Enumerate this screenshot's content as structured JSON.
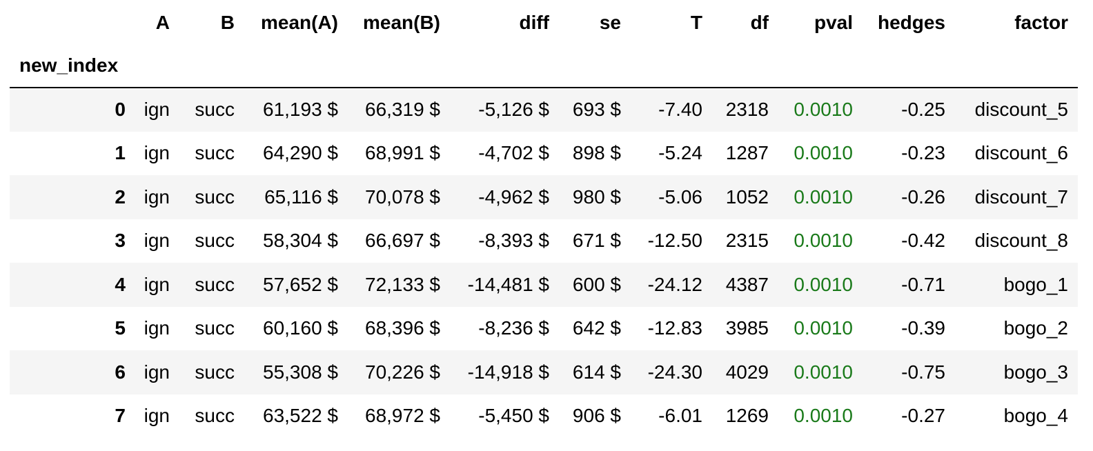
{
  "table": {
    "index_name": "new_index",
    "columns": [
      "A",
      "B",
      "mean(A)",
      "mean(B)",
      "diff",
      "se",
      "T",
      "df",
      "pval",
      "hedges",
      "factor"
    ],
    "rows": [
      {
        "index": "0",
        "A": "ign",
        "B": "succ",
        "meanA": "61,193 $",
        "meanB": "66,319 $",
        "diff": "-5,126 $",
        "se": "693 $",
        "T": "-7.40",
        "df": "2318",
        "pval": "0.0010",
        "hedges": "-0.25",
        "factor": "discount_5"
      },
      {
        "index": "1",
        "A": "ign",
        "B": "succ",
        "meanA": "64,290 $",
        "meanB": "68,991 $",
        "diff": "-4,702 $",
        "se": "898 $",
        "T": "-5.24",
        "df": "1287",
        "pval": "0.0010",
        "hedges": "-0.23",
        "factor": "discount_6"
      },
      {
        "index": "2",
        "A": "ign",
        "B": "succ",
        "meanA": "65,116 $",
        "meanB": "70,078 $",
        "diff": "-4,962 $",
        "se": "980 $",
        "T": "-5.06",
        "df": "1052",
        "pval": "0.0010",
        "hedges": "-0.26",
        "factor": "discount_7"
      },
      {
        "index": "3",
        "A": "ign",
        "B": "succ",
        "meanA": "58,304 $",
        "meanB": "66,697 $",
        "diff": "-8,393 $",
        "se": "671 $",
        "T": "-12.50",
        "df": "2315",
        "pval": "0.0010",
        "hedges": "-0.42",
        "factor": "discount_8"
      },
      {
        "index": "4",
        "A": "ign",
        "B": "succ",
        "meanA": "57,652 $",
        "meanB": "72,133 $",
        "diff": "-14,481 $",
        "se": "600 $",
        "T": "-24.12",
        "df": "4387",
        "pval": "0.0010",
        "hedges": "-0.71",
        "factor": "bogo_1"
      },
      {
        "index": "5",
        "A": "ign",
        "B": "succ",
        "meanA": "60,160 $",
        "meanB": "68,396 $",
        "diff": "-8,236 $",
        "se": "642 $",
        "T": "-12.83",
        "df": "3985",
        "pval": "0.0010",
        "hedges": "-0.39",
        "factor": "bogo_2"
      },
      {
        "index": "6",
        "A": "ign",
        "B": "succ",
        "meanA": "55,308 $",
        "meanB": "70,226 $",
        "diff": "-14,918 $",
        "se": "614 $",
        "T": "-24.30",
        "df": "4029",
        "pval": "0.0010",
        "hedges": "-0.75",
        "factor": "bogo_3"
      },
      {
        "index": "7",
        "A": "ign",
        "B": "succ",
        "meanA": "63,522 $",
        "meanB": "68,972 $",
        "diff": "-5,450 $",
        "se": "906 $",
        "T": "-6.01",
        "df": "1269",
        "pval": "0.0010",
        "hedges": "-0.27",
        "factor": "bogo_4"
      }
    ]
  },
  "colors": {
    "pval_text": "#1a7a1a",
    "stripe_background": "#f5f5f5",
    "header_rule": "#000000"
  }
}
